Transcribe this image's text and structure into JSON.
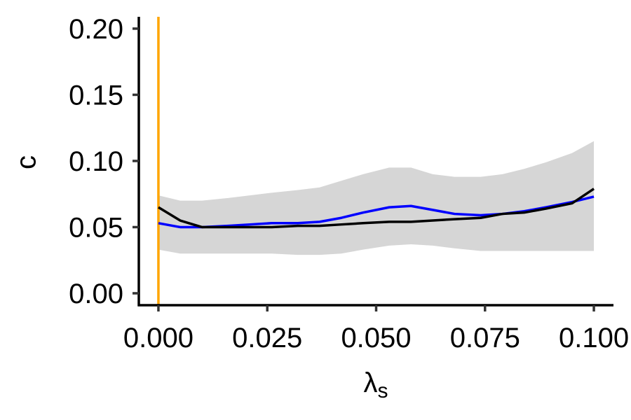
{
  "chart_data": {
    "type": "line",
    "xlabel": "λ",
    "xlabel_subscript": "s",
    "ylabel": "c",
    "xlim": [
      -0.0045,
      0.1045
    ],
    "ylim": [
      -0.009,
      0.21
    ],
    "x_ticks": [
      0.0,
      0.025,
      0.05,
      0.075,
      0.1
    ],
    "x_tick_labels": [
      "0.000",
      "0.025",
      "0.050",
      "0.075",
      "0.100"
    ],
    "y_ticks": [
      0.0,
      0.05,
      0.1,
      0.15,
      0.2
    ],
    "y_tick_labels": [
      "0.00",
      "0.05",
      "0.10",
      "0.15",
      "0.20"
    ],
    "grid": false,
    "legend": "none",
    "vline": {
      "x": 0.0,
      "color": "#FFA500"
    },
    "band": {
      "color": "#D6D6D6",
      "x": [
        0.0,
        0.005,
        0.01,
        0.016,
        0.021,
        0.026,
        0.032,
        0.037,
        0.042,
        0.047,
        0.053,
        0.058,
        0.063,
        0.068,
        0.074,
        0.079,
        0.084,
        0.089,
        0.095,
        0.1
      ],
      "upper": [
        0.074,
        0.07,
        0.07,
        0.072,
        0.074,
        0.076,
        0.078,
        0.08,
        0.085,
        0.09,
        0.095,
        0.095,
        0.09,
        0.088,
        0.088,
        0.09,
        0.094,
        0.099,
        0.106,
        0.115
      ],
      "lower": [
        0.033,
        0.03,
        0.03,
        0.03,
        0.03,
        0.03,
        0.029,
        0.029,
        0.03,
        0.033,
        0.036,
        0.037,
        0.036,
        0.034,
        0.032,
        0.032,
        0.032,
        0.032,
        0.032,
        0.032
      ]
    },
    "series": [
      {
        "color": "#0000FF",
        "x": [
          0.0,
          0.005,
          0.01,
          0.016,
          0.021,
          0.026,
          0.032,
          0.037,
          0.042,
          0.047,
          0.053,
          0.058,
          0.063,
          0.068,
          0.074,
          0.079,
          0.084,
          0.089,
          0.095,
          0.1
        ],
        "values": [
          0.053,
          0.05,
          0.05,
          0.051,
          0.052,
          0.053,
          0.053,
          0.054,
          0.057,
          0.061,
          0.065,
          0.066,
          0.063,
          0.06,
          0.059,
          0.06,
          0.062,
          0.065,
          0.069,
          0.073
        ]
      },
      {
        "color": "#000000",
        "x": [
          0.0,
          0.005,
          0.01,
          0.016,
          0.021,
          0.026,
          0.032,
          0.037,
          0.042,
          0.047,
          0.053,
          0.058,
          0.063,
          0.068,
          0.074,
          0.079,
          0.084,
          0.089,
          0.095,
          0.1
        ],
        "values": [
          0.065,
          0.055,
          0.05,
          0.05,
          0.05,
          0.05,
          0.051,
          0.051,
          0.052,
          0.053,
          0.054,
          0.054,
          0.055,
          0.056,
          0.057,
          0.06,
          0.061,
          0.064,
          0.068,
          0.079
        ]
      }
    ]
  }
}
